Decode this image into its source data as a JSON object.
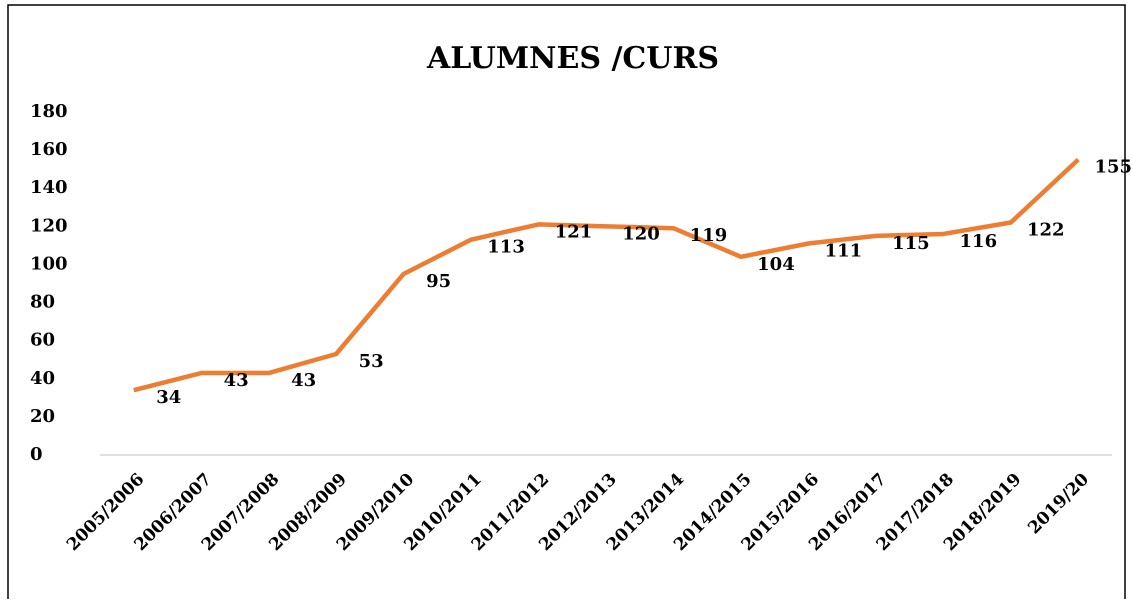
{
  "chart_data": {
    "type": "line",
    "title": "ALUMNES /CURS",
    "categories": [
      "2005/2006",
      "2006/2007",
      "2007/2008",
      "2008/2009",
      "2009/2010",
      "2010/2011",
      "2011/2012",
      "2012/2013",
      "2013/2014",
      "2014/2015",
      "2015/2016",
      "2016/2017",
      "2017/2018",
      "2018/2019",
      "2019/20"
    ],
    "values": [
      34,
      43,
      43,
      53,
      95,
      113,
      121,
      120,
      119,
      104,
      111,
      115,
      116,
      122,
      155
    ],
    "color": "#ed7d31",
    "ylim": [
      0,
      180
    ],
    "yticks": [
      0,
      20,
      40,
      60,
      80,
      100,
      120,
      140,
      160,
      180
    ],
    "grid": false
  }
}
